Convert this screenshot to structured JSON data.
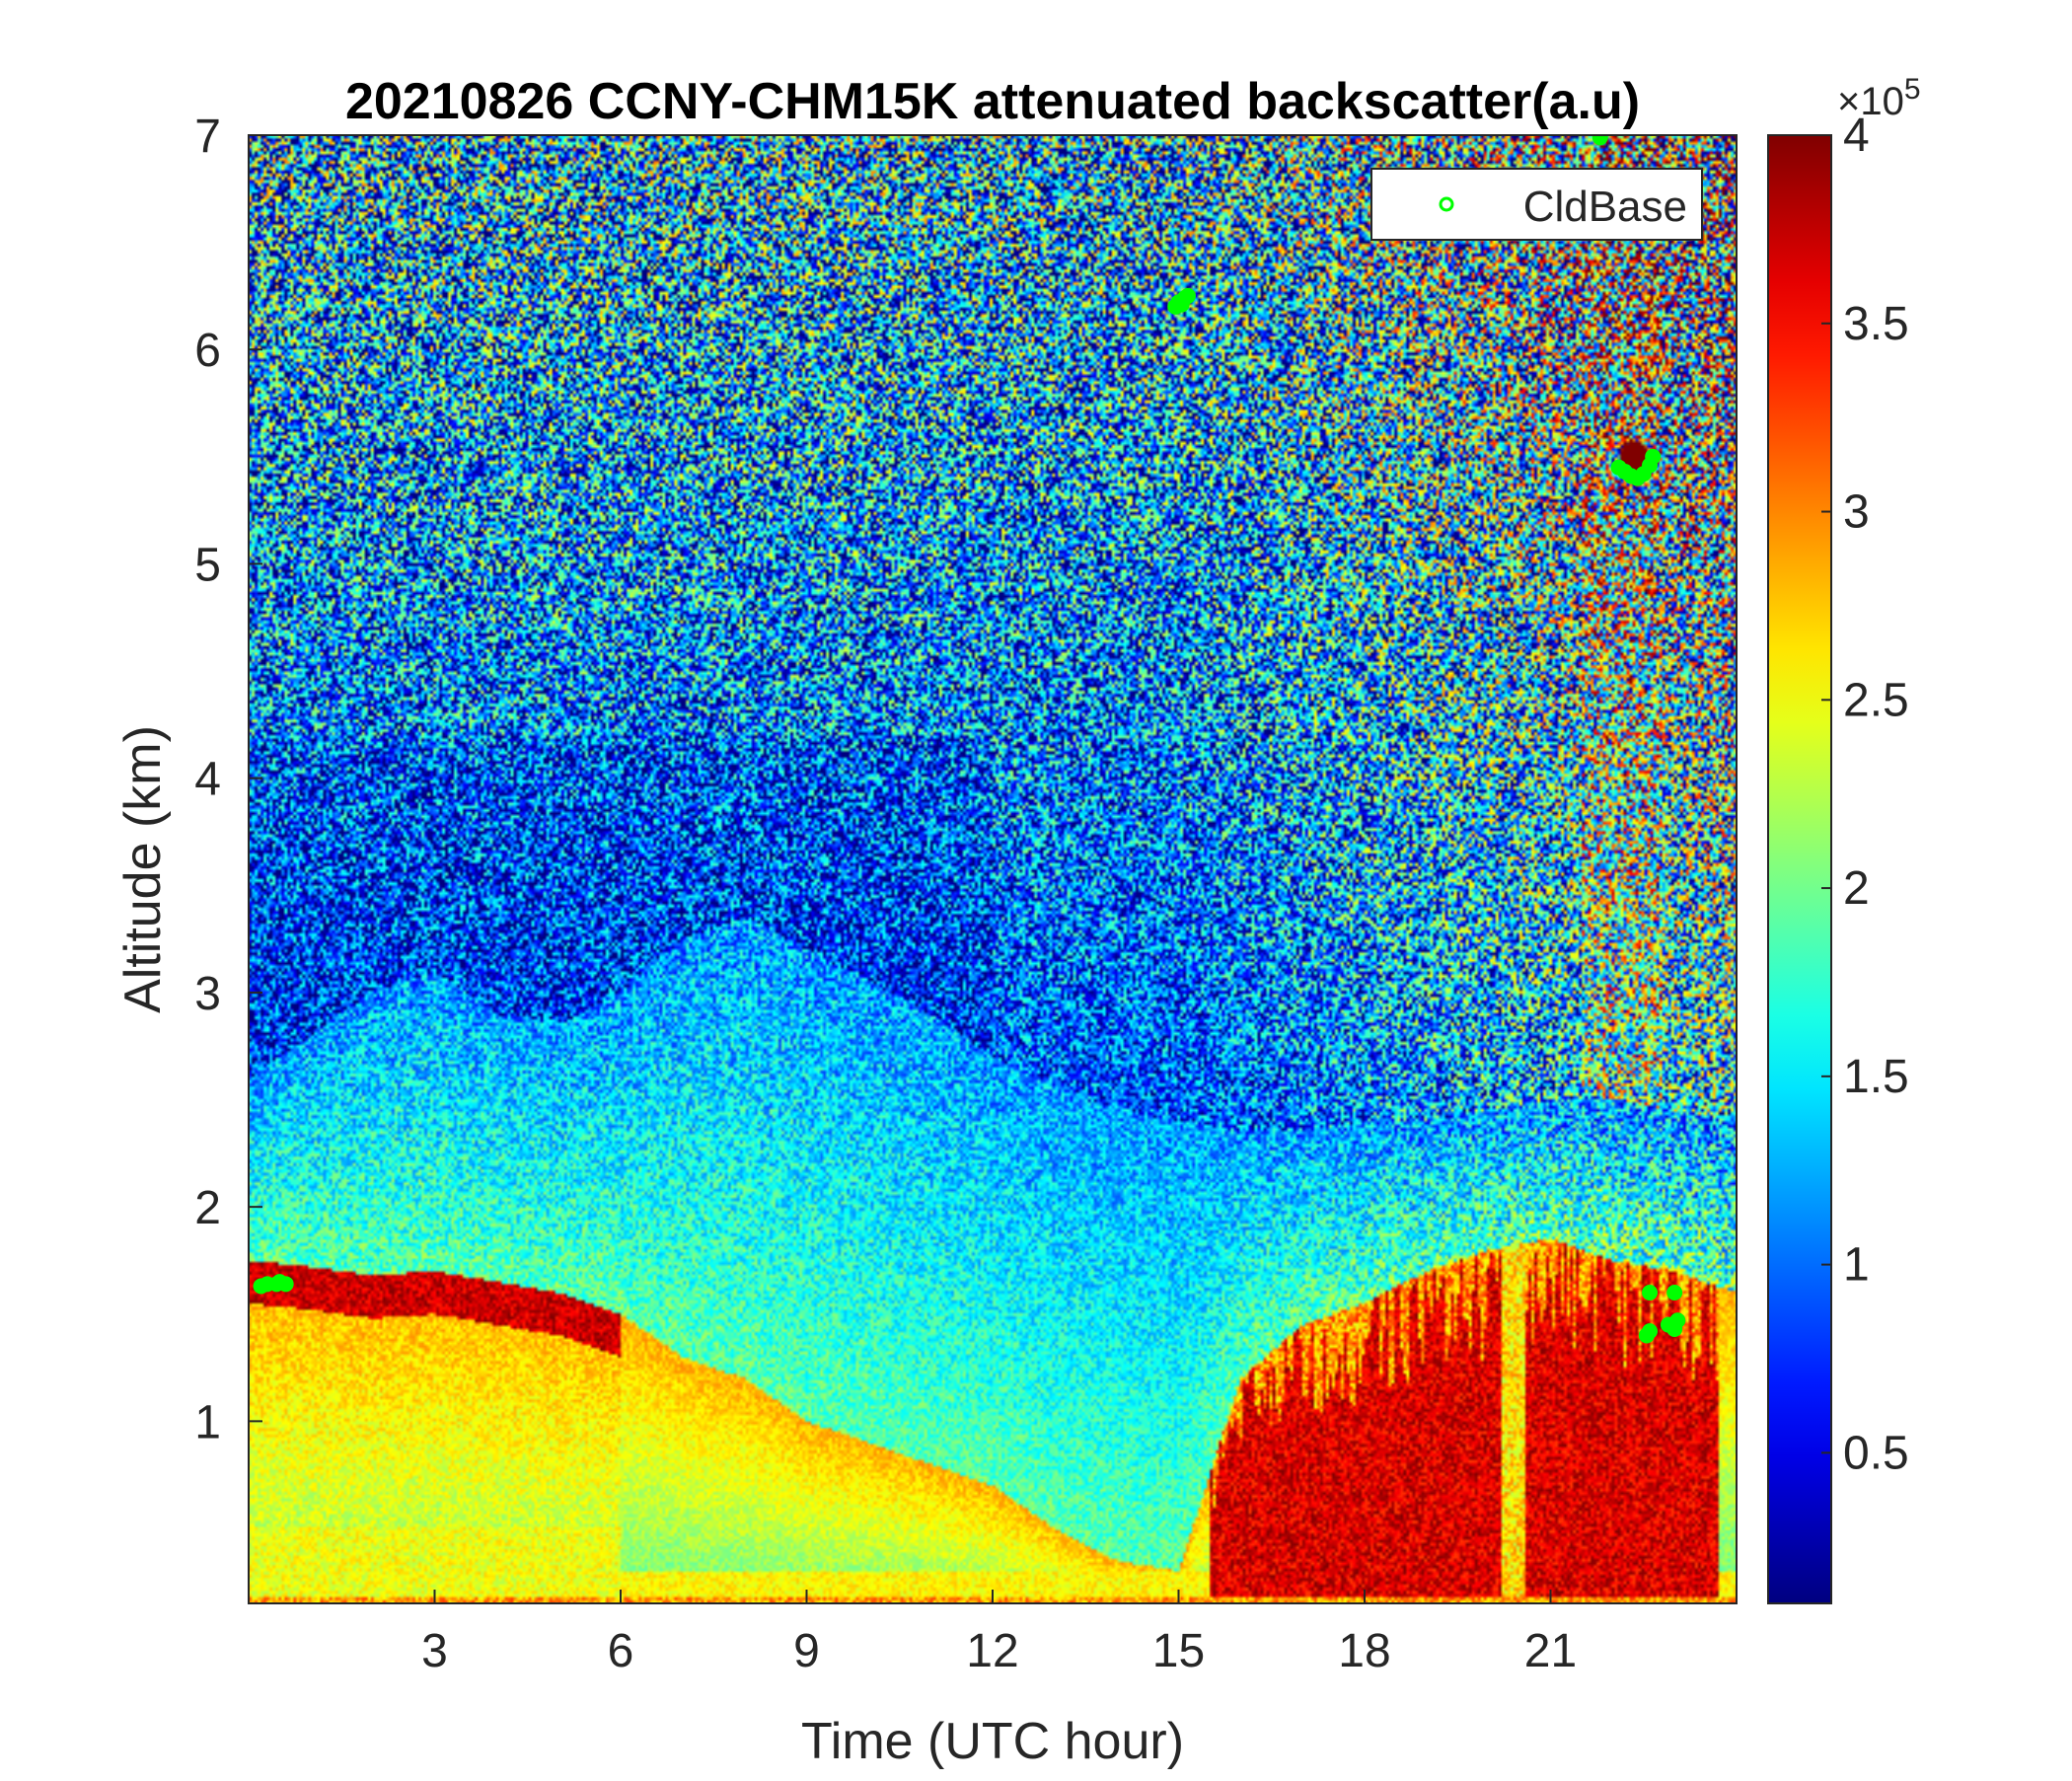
{
  "chart_data": {
    "type": "heatmap",
    "title": "20210826 CCNY-CHM15K attenuated backscatter(a.u)",
    "xlabel": "Time (UTC hour)",
    "ylabel": "Altitude (km)",
    "xlim": [
      0,
      24
    ],
    "ylim": [
      0.15,
      7
    ],
    "xticks": [
      "3",
      "6",
      "9",
      "12",
      "15",
      "18",
      "21"
    ],
    "yticks": [
      "1",
      "2",
      "3",
      "4",
      "5",
      "6",
      "7"
    ],
    "colorbar": {
      "colormap": "jet",
      "range": [
        0.1,
        4.0
      ],
      "ticks": [
        "0.5",
        "1",
        "1.5",
        "2",
        "2.5",
        "3",
        "3.5",
        "4"
      ],
      "multiplier": "×10",
      "exponent": "5"
    },
    "legend": {
      "position": "top-right",
      "entries": [
        "CldBase"
      ]
    },
    "series": [
      {
        "name": "CldBase",
        "marker": "circle",
        "color": "#00ff00",
        "points": [
          [
            0.2,
            1.63
          ],
          [
            0.3,
            1.64
          ],
          [
            0.45,
            1.64
          ],
          [
            0.5,
            1.65
          ],
          [
            0.6,
            1.64
          ],
          [
            14.95,
            6.2
          ],
          [
            15.0,
            6.22
          ],
          [
            15.05,
            6.21
          ],
          [
            15.1,
            6.24
          ],
          [
            15.15,
            6.25
          ],
          [
            21.8,
            6.99
          ],
          [
            22.1,
            5.45
          ],
          [
            22.2,
            5.43
          ],
          [
            22.3,
            5.41
          ],
          [
            22.4,
            5.4
          ],
          [
            22.5,
            5.42
          ],
          [
            22.6,
            5.46
          ],
          [
            22.65,
            5.5
          ],
          [
            22.55,
            1.4
          ],
          [
            22.6,
            1.42
          ],
          [
            22.9,
            1.45
          ],
          [
            23.0,
            1.43
          ],
          [
            23.05,
            1.47
          ],
          [
            22.6,
            1.6
          ],
          [
            23.0,
            1.6
          ]
        ]
      }
    ],
    "field_description_profiles": {
      "hours": [
        0,
        1,
        2,
        3,
        4,
        5,
        6,
        7,
        8,
        9,
        10,
        11,
        12,
        13,
        14,
        15,
        16,
        17,
        18,
        19,
        20,
        21,
        22,
        23,
        24
      ],
      "boundary_layer_top_km": [
        1.75,
        1.72,
        1.68,
        1.7,
        1.65,
        1.6,
        1.5,
        1.3,
        1.2,
        1.0,
        0.9,
        0.8,
        0.7,
        0.5,
        0.35,
        0.3,
        1.2,
        1.45,
        1.55,
        1.7,
        1.8,
        1.85,
        1.75,
        1.7,
        1.6
      ],
      "residual_layer_top_km": [
        2.6,
        2.8,
        3.0,
        3.1,
        2.9,
        2.85,
        3.0,
        3.25,
        3.35,
        3.2,
        3.05,
        2.9,
        2.7,
        2.55,
        2.45,
        2.4,
        2.35,
        2.35,
        2.4,
        2.4,
        2.45,
        2.5,
        2.5,
        2.45,
        2.4
      ]
    }
  }
}
